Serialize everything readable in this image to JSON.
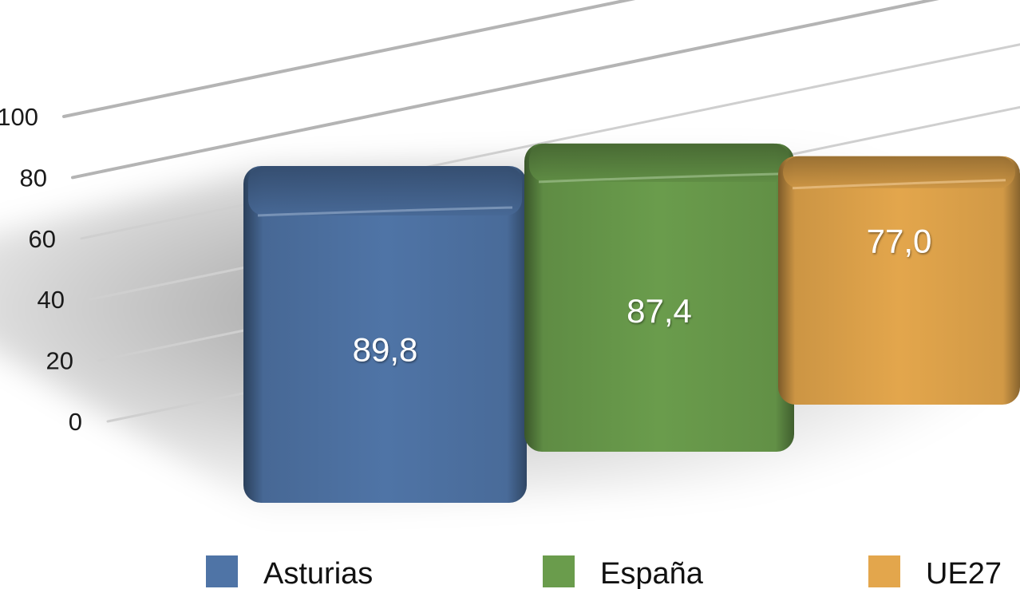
{
  "chart_data": {
    "type": "bar",
    "categories": [
      "Asturias",
      "España",
      "UE27"
    ],
    "values": [
      89.8,
      87.4,
      77.0
    ],
    "value_labels": [
      "89,8",
      "87,4",
      "77,0"
    ],
    "title": "",
    "xlabel": "",
    "ylabel": "",
    "ylim": [
      0,
      100
    ],
    "y_ticks": [
      0,
      20,
      40,
      60,
      80,
      100
    ],
    "y_tick_labels": [
      "0",
      "20",
      "40",
      "60",
      "80",
      "100"
    ],
    "grid": true,
    "legend_position": "bottom",
    "style": "3d-perspective",
    "colors": [
      "#4f74a6",
      "#6a9c4c",
      "#e3a64c"
    ]
  },
  "legend": {
    "items": [
      {
        "label": "Asturias",
        "color": "#4f74a6"
      },
      {
        "label": "España",
        "color": "#6a9c4c"
      },
      {
        "label": "UE27",
        "color": "#e3a64c"
      }
    ]
  }
}
